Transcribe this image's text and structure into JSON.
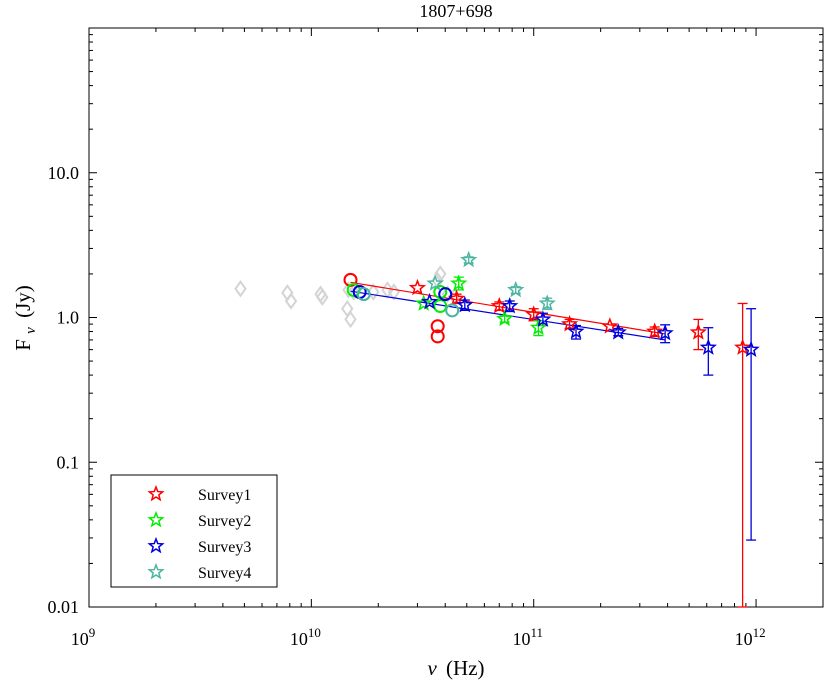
{
  "chart_data": {
    "type": "scatter",
    "title": "1807+698",
    "xlabel": {
      "sym": "ν",
      "unit": "(Hz)"
    },
    "ylabel": {
      "sym": "F",
      "sub": "ν",
      "unit": "(Jy)"
    },
    "xscale": "log",
    "yscale": "log",
    "xlim": [
      1000000000.0,
      2000000000000.0
    ],
    "ylim": [
      0.01,
      100
    ],
    "xticks": [
      {
        "value": 1000000000.0,
        "base": "10",
        "exp": "9"
      },
      {
        "value": 10000000000.0,
        "base": "10",
        "exp": "10"
      },
      {
        "value": 100000000000.0,
        "base": "10",
        "exp": "11"
      },
      {
        "value": 1000000000000.0,
        "base": "10",
        "exp": "12"
      }
    ],
    "yticks": [
      {
        "value": 0.01,
        "label": "0.01"
      },
      {
        "value": 0.1,
        "label": "0.1"
      },
      {
        "value": 1,
        "label": "1.0"
      },
      {
        "value": 10,
        "label": "10.0"
      }
    ],
    "grid": false,
    "legend_position": "bottom-left",
    "background_points": [
      [
        4800000000.0,
        1.58
      ],
      [
        7800000000.0,
        1.48
      ],
      [
        8100000000.0,
        1.3
      ],
      [
        11000000000.0,
        1.45
      ],
      [
        11200000000.0,
        1.38
      ],
      [
        14500000000.0,
        1.15
      ],
      [
        15000000000.0,
        0.97
      ],
      [
        14700000000.0,
        1.55
      ],
      [
        15500000000.0,
        1.5
      ],
      [
        19000000000.0,
        1.5
      ],
      [
        22000000000.0,
        1.55
      ],
      [
        23500000000.0,
        1.5
      ],
      [
        37000000000.0,
        1.8
      ],
      [
        38000000000.0,
        2.0
      ],
      [
        41000000000.0,
        1.45
      ],
      [
        44000000000.0,
        1.4
      ]
    ],
    "series": [
      {
        "name": "Survey1",
        "color": "#ff0000",
        "stars": [
          {
            "x": 30000000000.0,
            "y": 1.6
          },
          {
            "x": 45000000000.0,
            "y": 1.35,
            "err": [
              1.25,
              1.45
            ]
          },
          {
            "x": 70000000000.0,
            "y": 1.2,
            "err": [
              1.12,
              1.28
            ]
          },
          {
            "x": 100000000000.0,
            "y": 1.05,
            "err": [
              0.95,
              1.15
            ]
          },
          {
            "x": 145000000000.0,
            "y": 0.9,
            "err": [
              0.84,
              0.97
            ]
          },
          {
            "x": 220000000000.0,
            "y": 0.87
          },
          {
            "x": 350000000000.0,
            "y": 0.8,
            "err": [
              0.74,
              0.86
            ]
          },
          {
            "x": 550000000000.0,
            "y": 0.79,
            "err": [
              0.6,
              0.97
            ]
          },
          {
            "x": 870000000000.0,
            "y": 0.62,
            "err": [
              0.01,
              1.25
            ]
          }
        ],
        "circles": [
          {
            "x": 15000000000.0,
            "y": 1.82
          },
          {
            "x": 37000000000.0,
            "y": 0.87
          },
          {
            "x": 37000000000.0,
            "y": 0.74
          }
        ],
        "fit": [
          [
            15000000000.0,
            1.75
          ],
          [
            390000000000.0,
            0.77
          ]
        ]
      },
      {
        "name": "Survey2",
        "color": "#00ee00",
        "stars": [
          {
            "x": 32000000000.0,
            "y": 1.25
          },
          {
            "x": 46000000000.0,
            "y": 1.72,
            "err": [
              1.55,
              1.9
            ]
          },
          {
            "x": 74000000000.0,
            "y": 0.98,
            "err": [
              0.93,
              1.03
            ]
          },
          {
            "x": 105000000000.0,
            "y": 0.85,
            "err": [
              0.75,
              0.95
            ]
          }
        ],
        "circles": [
          {
            "x": 15500000000.0,
            "y": 1.55
          },
          {
            "x": 38000000000.0,
            "y": 1.5
          },
          {
            "x": 38000000000.0,
            "y": 1.2
          }
        ]
      },
      {
        "name": "Survey3",
        "color": "#0000dd",
        "stars": [
          {
            "x": 34000000000.0,
            "y": 1.28
          },
          {
            "x": 49000000000.0,
            "y": 1.22,
            "err": [
              1.12,
              1.32
            ]
          },
          {
            "x": 78000000000.0,
            "y": 1.2,
            "err": [
              1.1,
              1.3
            ]
          },
          {
            "x": 110000000000.0,
            "y": 0.97,
            "err": [
              0.88,
              1.07
            ]
          },
          {
            "x": 155000000000.0,
            "y": 0.8,
            "err": [
              0.71,
              0.88
            ]
          },
          {
            "x": 240000000000.0,
            "y": 0.79,
            "err": [
              0.75,
              0.84
            ]
          },
          {
            "x": 390000000000.0,
            "y": 0.78,
            "err": [
              0.67,
              0.89
            ]
          },
          {
            "x": 610000000000.0,
            "y": 0.62,
            "err": [
              0.4,
              0.85
            ]
          },
          {
            "x": 950000000000.0,
            "y": 0.6,
            "err": [
              0.029,
              1.15
            ]
          }
        ],
        "circles": [
          {
            "x": 16500000000.0,
            "y": 1.5
          },
          {
            "x": 40000000000.0,
            "y": 1.45
          }
        ],
        "fit": [
          [
            15000000000.0,
            1.52
          ],
          [
            390000000000.0,
            0.7
          ]
        ]
      },
      {
        "name": "Survey4",
        "color": "#4ab5a0",
        "stars": [
          {
            "x": 36000000000.0,
            "y": 1.72
          },
          {
            "x": 51000000000.0,
            "y": 2.5,
            "err": [
              2.38,
              2.62
            ]
          },
          {
            "x": 83000000000.0,
            "y": 1.55,
            "err": [
              1.47,
              1.63
            ]
          },
          {
            "x": 115000000000.0,
            "y": 1.25,
            "err": [
              1.14,
              1.36
            ]
          }
        ],
        "circles": [
          {
            "x": 17200000000.0,
            "y": 1.45
          },
          {
            "x": 43000000000.0,
            "y": 1.12
          }
        ]
      }
    ]
  }
}
